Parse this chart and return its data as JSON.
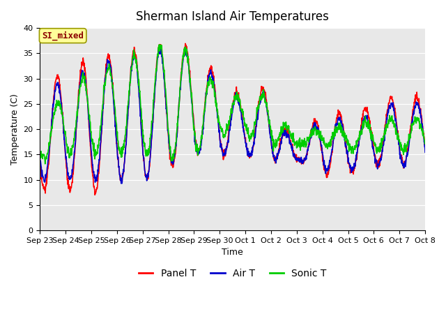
{
  "title": "Sherman Island Air Temperatures",
  "xlabel": "Time",
  "ylabel": "Temperature (C)",
  "ylim": [
    0,
    40
  ],
  "yticks": [
    0,
    5,
    10,
    15,
    20,
    25,
    30,
    35,
    40
  ],
  "x_labels": [
    "Sep 23",
    "Sep 24",
    "Sep 25",
    "Sep 26",
    "Sep 27",
    "Sep 28",
    "Sep 29",
    "Sep 30",
    "Oct 1",
    "Oct 2",
    "Oct 3",
    "Oct 4",
    "Oct 5",
    "Oct 6",
    "Oct 7",
    "Oct 8"
  ],
  "annotation_text": "SI_mixed",
  "annotation_color": "#8B0000",
  "annotation_bg": "#FFFF99",
  "annotation_edge": "#999900",
  "bg_color": "#E8E8E8",
  "panel_color": "#FF0000",
  "air_color": "#0000CC",
  "sonic_color": "#00CC00",
  "line_width": 1.2,
  "title_fontsize": 12,
  "tick_fontsize": 8,
  "legend_labels": [
    "Panel T",
    "Air T",
    "Sonic T"
  ],
  "panel_peaks": [
    28,
    8,
    32,
    8,
    34,
    7,
    35,
    10,
    36,
    10,
    37,
    12,
    36,
    16,
    30,
    15,
    26,
    15,
    29,
    14,
    14,
    14,
    25,
    11,
    22,
    11,
    25,
    13,
    27,
    13
  ],
  "air_peaks": [
    27,
    10,
    30,
    10,
    32,
    10,
    34,
    10,
    35,
    10,
    36,
    13,
    35,
    15,
    29,
    15,
    25,
    15,
    28,
    14,
    14,
    14,
    24,
    12,
    21,
    12,
    23,
    13,
    26,
    13
  ],
  "sonic_peaks": [
    20,
    14,
    28,
    15,
    31,
    15,
    33,
    15,
    35,
    15,
    37,
    14,
    35,
    15,
    27,
    19,
    26,
    19,
    27,
    17,
    17,
    17,
    21,
    17,
    20,
    16,
    22,
    16,
    22,
    16
  ]
}
